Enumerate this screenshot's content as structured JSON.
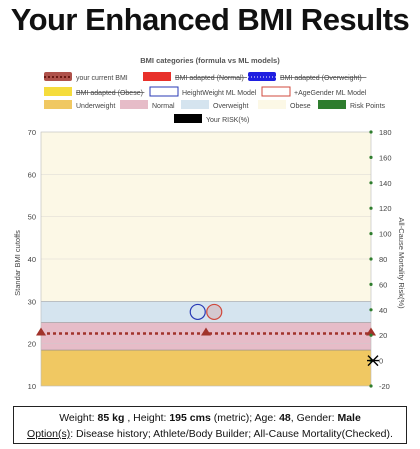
{
  "page_title": "Your Enhanced BMI Results",
  "summary": {
    "weight_label": "Weight:",
    "weight_value": "85 kg",
    "height_label": ", Height:",
    "height_value": "195 cms",
    "unit_note": "(metric); Age:",
    "age_value": "48",
    "gender_label": ", Gender:",
    "gender_value": "Male",
    "options_label": "Option(s)",
    "options_text": ": Disease history; Athlete/Body Builder; All-Cause Mortality(Checked)."
  },
  "colors": {
    "underweight": "#f0c862",
    "normal": "#e6bcc8",
    "overweight": "#d5e4ef",
    "obese": "#fcf8e6",
    "current_bmi": "#a0322a",
    "bmi_adapted_normal": "#e8302a",
    "bmi_adapted_overweight": "#1e1ee0",
    "bmi_adapted_obese": "#f5dc3c",
    "heightweight_model": "#2a3ab5",
    "agegender_model": "#d0483c",
    "risk_points": "#2e7d2e",
    "your_risk": "#000000"
  },
  "chart_data": {
    "type": "area",
    "title": "BMI categories (formula vs ML models)",
    "ylabel_left": "Standar BMI cutoffs",
    "ylabel_right": "All-Cause Mortality Risk(%)",
    "ylim_left": [
      10,
      70
    ],
    "ylim_right": [
      -20,
      180
    ],
    "left_ticks": [
      10,
      20,
      30,
      40,
      50,
      60,
      70
    ],
    "right_ticks": [
      -20,
      0,
      20,
      40,
      60,
      80,
      100,
      120,
      140,
      160,
      180
    ],
    "grid": true,
    "legend_position": "top",
    "legend": [
      {
        "label": "your current BMI",
        "key": "current_bmi",
        "style": "dotted-line",
        "struck": false
      },
      {
        "label": "BMI adapted (Normal)",
        "key": "bmi_adapted_normal",
        "style": "fill",
        "struck": true
      },
      {
        "label": "BMI adapted (Overweight)",
        "key": "bmi_adapted_overweight",
        "style": "dotted-fill",
        "struck": true
      },
      {
        "label": "BMI adapted (Obese)",
        "key": "bmi_adapted_obese",
        "style": "fill",
        "struck": true
      },
      {
        "label": "HeightWeight ML Model",
        "key": "heightweight_model",
        "style": "outline",
        "struck": false
      },
      {
        "label": "+AgeGender ML Model",
        "key": "agegender_model",
        "style": "outline",
        "struck": false
      },
      {
        "label": "Underweight",
        "key": "underweight",
        "style": "fill",
        "struck": false
      },
      {
        "label": "Normal",
        "key": "normal",
        "style": "fill",
        "struck": false
      },
      {
        "label": "Overweight",
        "key": "overweight",
        "style": "fill",
        "struck": false
      },
      {
        "label": "Obese",
        "key": "obese",
        "style": "fill",
        "struck": false
      },
      {
        "label": "Risk Points",
        "key": "risk_points",
        "style": "fill",
        "struck": false
      },
      {
        "label": "Your RISK(%)",
        "key": "your_risk",
        "style": "fill",
        "struck": false
      }
    ],
    "bands": [
      {
        "name": "Underweight",
        "from": 10,
        "to": 18.5
      },
      {
        "name": "Normal",
        "from": 18.5,
        "to": 25
      },
      {
        "name": "Overweight",
        "from": 25,
        "to": 30
      },
      {
        "name": "Obese",
        "from": 30,
        "to": 70
      }
    ],
    "current_bmi": 22.4,
    "current_bmi_markers_x": [
      0,
      0.5,
      1
    ],
    "heightweight_model_bmi": 27.5,
    "agegender_model_bmi": 27.5,
    "model_markers_x": [
      0.475,
      0.525
    ],
    "risk_points_right": [
      -20,
      0,
      20,
      40,
      60,
      80,
      100,
      120,
      140,
      160,
      180
    ],
    "your_risk_right": 0
  }
}
